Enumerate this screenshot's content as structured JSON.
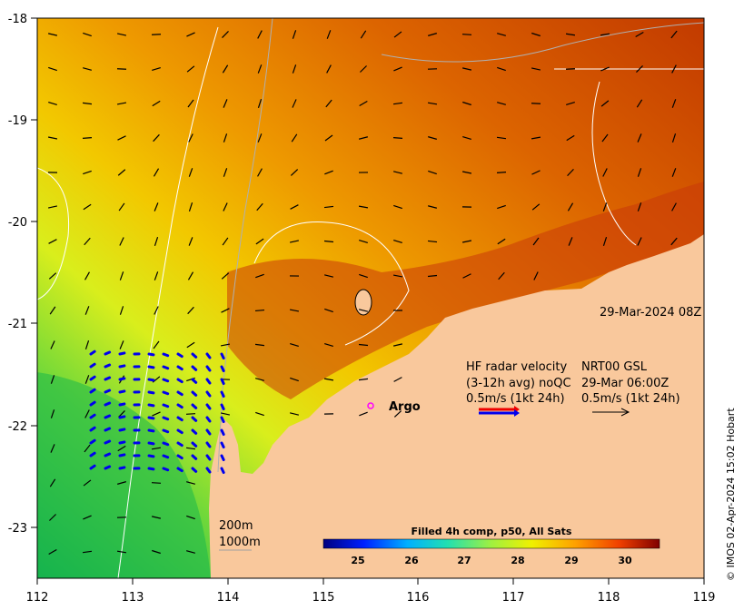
{
  "map": {
    "lon_ticks": [
      "112",
      "113",
      "114",
      "115",
      "116",
      "117",
      "118",
      "119"
    ],
    "lat_ticks": [
      "-18",
      "-19",
      "-20",
      "-21",
      "-22",
      "-23"
    ],
    "timestamp": "29-Mar-2024 08Z",
    "legend": {
      "line1_left": "HF radar velocity",
      "line1_right": "NRT00 GSL",
      "line2_left": "(3-12h avg) noQC",
      "line2_right": "29-Mar 06:00Z",
      "line3_left": "0.5m/s (1kt 24h)",
      "line3_right": "0.5m/s (1kt 24h)"
    },
    "argo_label": "Argo",
    "contour_200": "200m",
    "contour_1000": "1000m",
    "colorbar": {
      "title": "Filled 4h comp, p50, All Sats",
      "ticks": [
        "25",
        "26",
        "27",
        "28",
        "29",
        "30"
      ]
    },
    "credit": "© IMOS 02-Apr-2024 15:02 Hobart",
    "colors": {
      "land": "#f9c89c",
      "sea_hot": "#c52a00",
      "sea_cool": "#14b64a",
      "radar_blue": "#0000ee",
      "radar_red": "#ee0000",
      "argo": "#ff00ff"
    }
  }
}
